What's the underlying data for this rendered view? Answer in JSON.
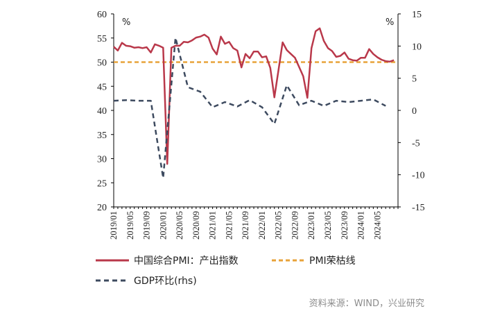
{
  "chart_data": {
    "type": "line",
    "left_axis": {
      "unit": "%",
      "ylim": [
        20,
        60
      ],
      "ticks": [
        20,
        25,
        30,
        35,
        40,
        45,
        50,
        55,
        60
      ]
    },
    "right_axis": {
      "unit": "%",
      "ylim": [
        -15,
        15
      ],
      "ticks": [
        -15,
        -10,
        -5,
        0,
        5,
        10,
        15
      ]
    },
    "x_tick_labels": [
      "2019/01",
      "2019/05",
      "2019/09",
      "2020/01",
      "2020/05",
      "2020/09",
      "2021/01",
      "2021/05",
      "2021/09",
      "2022/01",
      "2022/05",
      "2022/09",
      "2023/01",
      "2023/05",
      "2023/09",
      "2024/01",
      "2024/05"
    ],
    "reference_line": {
      "name": "PMI荣枯线",
      "value": 50,
      "color": "#e8a33a",
      "style": "dashed",
      "axis": "left"
    },
    "series": [
      {
        "name": "中国综合PMI：产出指数",
        "axis": "left",
        "color": "#b9384a",
        "style": "solid",
        "x": [
          "2019/01",
          "2019/02",
          "2019/03",
          "2019/04",
          "2019/05",
          "2019/06",
          "2019/07",
          "2019/08",
          "2019/09",
          "2019/10",
          "2019/11",
          "2019/12",
          "2020/01",
          "2020/02",
          "2020/03",
          "2020/04",
          "2020/05",
          "2020/06",
          "2020/07",
          "2020/08",
          "2020/09",
          "2020/10",
          "2020/11",
          "2020/12",
          "2021/01",
          "2021/02",
          "2021/03",
          "2021/04",
          "2021/05",
          "2021/06",
          "2021/07",
          "2021/08",
          "2021/09",
          "2021/10",
          "2021/11",
          "2021/12",
          "2022/01",
          "2022/02",
          "2022/03",
          "2022/04",
          "2022/05",
          "2022/06",
          "2022/07",
          "2022/08",
          "2022/09",
          "2022/10",
          "2022/11",
          "2022/12",
          "2023/01",
          "2023/02",
          "2023/03",
          "2023/04",
          "2023/05",
          "2023/06",
          "2023/07",
          "2023/08",
          "2023/09",
          "2023/10",
          "2023/11",
          "2023/12",
          "2024/01",
          "2024/02",
          "2024/03",
          "2024/04",
          "2024/05",
          "2024/06",
          "2024/07",
          "2024/08",
          "2024/09"
        ],
        "values": [
          53.2,
          52.4,
          54.0,
          53.4,
          53.3,
          53.0,
          53.1,
          52.9,
          53.1,
          52.0,
          53.7,
          53.4,
          53.0,
          28.9,
          53.0,
          53.4,
          53.4,
          54.2,
          54.1,
          54.5,
          55.1,
          55.3,
          55.7,
          55.1,
          52.8,
          51.6,
          55.3,
          53.8,
          54.2,
          52.9,
          52.4,
          48.9,
          51.7,
          50.8,
          52.2,
          52.2,
          51.0,
          51.2,
          48.8,
          42.7,
          48.4,
          54.1,
          52.5,
          51.7,
          50.9,
          49.0,
          47.1,
          42.6,
          52.9,
          56.4,
          57.0,
          54.4,
          52.9,
          52.3,
          51.1,
          51.3,
          52.0,
          50.7,
          50.4,
          50.3,
          50.9,
          50.9,
          52.7,
          51.7,
          51.0,
          50.5,
          50.2,
          50.1,
          50.4
        ]
      },
      {
        "name": "GDP环比(rhs)",
        "axis": "right",
        "color": "#3d4a5f",
        "style": "dashed",
        "x": [
          "2019/01",
          "2019/04",
          "2019/07",
          "2019/10",
          "2020/01",
          "2020/04",
          "2020/07",
          "2020/10",
          "2021/01",
          "2021/04",
          "2021/07",
          "2021/10",
          "2022/01",
          "2022/04",
          "2022/07",
          "2022/10",
          "2023/01",
          "2023/04",
          "2023/07",
          "2023/10",
          "2024/01",
          "2024/04",
          "2024/07"
        ],
        "values": [
          1.5,
          1.6,
          1.5,
          1.5,
          -10.5,
          11.3,
          3.6,
          2.9,
          0.5,
          1.3,
          0.6,
          1.6,
          0.5,
          -2.1,
          3.9,
          0.8,
          1.5,
          0.7,
          1.5,
          1.3,
          1.5,
          1.7,
          0.7
        ]
      }
    ]
  },
  "legend": {
    "pmi_label": "中国综合PMI：产出指数",
    "line_label": "PMI荣枯线",
    "gdp_label": "GDP环比(rhs)"
  },
  "source": "资料来源：WIND，兴业研究"
}
